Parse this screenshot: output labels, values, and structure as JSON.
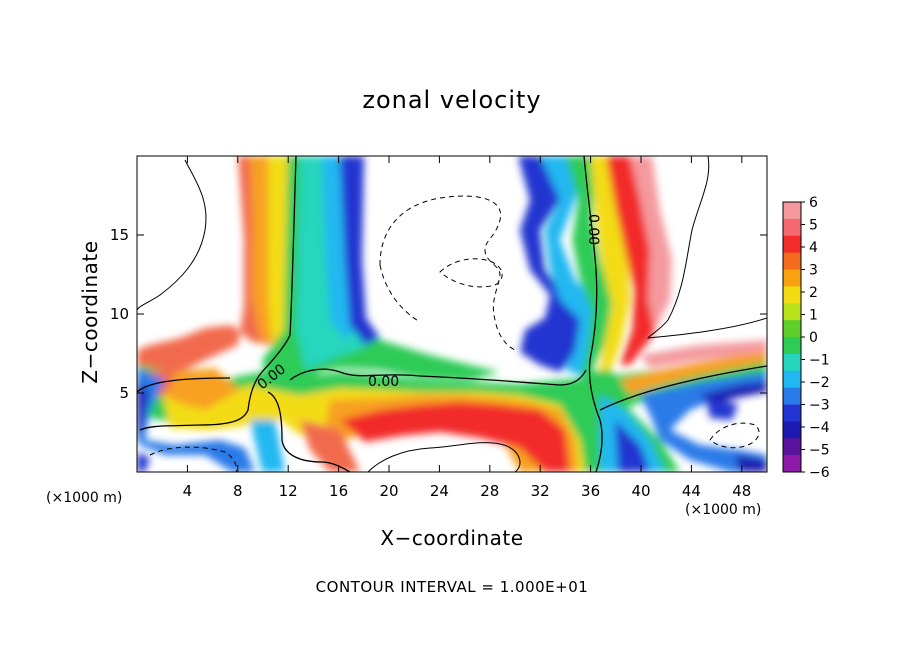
{
  "chart_data": {
    "type": "heatmap",
    "title": "zonal velocity",
    "xlabel": "X−coordinate",
    "ylabel": "Z−coordinate",
    "x_unit_left": "(×1000 m)",
    "x_unit_right": "(×1000 m)",
    "xlim": [
      0,
      50
    ],
    "ylim": [
      0,
      20
    ],
    "x_ticks": [
      4,
      8,
      12,
      16,
      20,
      24,
      28,
      32,
      36,
      40,
      44,
      48
    ],
    "y_ticks": [
      5,
      10,
      15
    ],
    "colorbar": {
      "levels": [
        6,
        5,
        4,
        3,
        2,
        1,
        0,
        -1,
        -2,
        -3,
        -4,
        -5,
        -6
      ],
      "labels": [
        "6",
        "5",
        "4",
        "3",
        "2",
        "1",
        "0",
        "−1",
        "−2",
        "−3",
        "−4",
        "−5",
        "−6"
      ],
      "colors": [
        "#f49a9e",
        "#f46a70",
        "#f22b2b",
        "#f56b1d",
        "#f8a20f",
        "#f3dc12",
        "#b9e21b",
        "#5fd02b",
        "#2ecb56",
        "#25d6bd",
        "#21b8f0",
        "#2a7ae8",
        "#2434d0",
        "#1c1ab0",
        "#5a149c",
        "#8d1aa8"
      ]
    },
    "contour_labels": [
      "0.00",
      "0.00",
      "0.00"
    ],
    "footer": "CONTOUR INTERVAL = 1.000E+01"
  }
}
